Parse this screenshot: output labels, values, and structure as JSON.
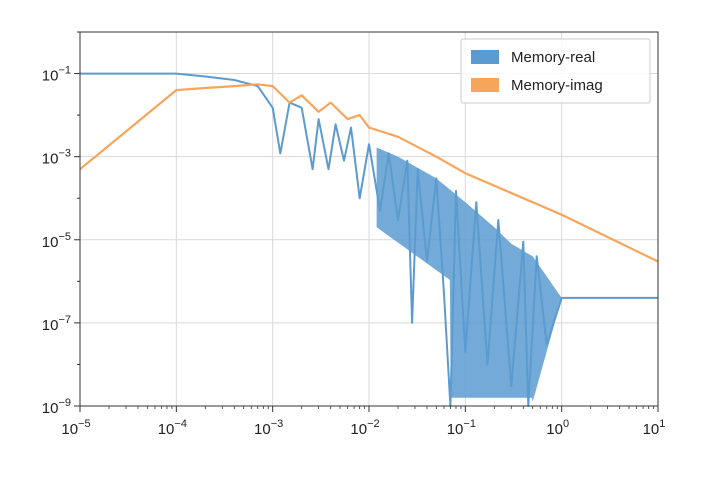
{
  "chart_data": {
    "type": "line",
    "title": "",
    "xlabel": "",
    "ylabel": "",
    "x_scale": "log",
    "y_scale": "log",
    "xlim": [
      1e-05,
      10
    ],
    "ylim": [
      1e-09,
      1
    ],
    "grid": true,
    "legend_position": "top-right",
    "x_ticks": [
      {
        "base": "10",
        "exp": "−5",
        "value": 1e-05
      },
      {
        "base": "10",
        "exp": "−4",
        "value": 0.0001
      },
      {
        "base": "10",
        "exp": "−3",
        "value": 0.001
      },
      {
        "base": "10",
        "exp": "−2",
        "value": 0.01
      },
      {
        "base": "10",
        "exp": "−1",
        "value": 0.1
      },
      {
        "base": "10",
        "exp": "0",
        "value": 1
      },
      {
        "base": "10",
        "exp": "1",
        "value": 10
      }
    ],
    "y_ticks": [
      {
        "base": "10",
        "exp": "−1",
        "value": 0.1
      },
      {
        "base": "10",
        "exp": "−3",
        "value": 0.001
      },
      {
        "base": "10",
        "exp": "−5",
        "value": 1e-05
      },
      {
        "base": "10",
        "exp": "−7",
        "value": 1e-07
      },
      {
        "base": "10",
        "exp": "−9",
        "value": 1e-09
      }
    ],
    "series": [
      {
        "name": "Memory-real",
        "color": "#5b9bd0",
        "points": [
          [
            1e-05,
            0.1
          ],
          [
            0.0001,
            0.1
          ],
          [
            0.0002,
            0.085
          ],
          [
            0.0004,
            0.07
          ],
          [
            0.0007,
            0.05
          ],
          [
            0.001,
            0.015
          ],
          [
            0.0012,
            0.0012
          ],
          [
            0.0015,
            0.02
          ],
          [
            0.002,
            0.015
          ],
          [
            0.0026,
            0.0005
          ],
          [
            0.003,
            0.008
          ],
          [
            0.0038,
            0.0005
          ],
          [
            0.0045,
            0.006
          ],
          [
            0.0055,
            0.0008
          ],
          [
            0.0065,
            0.005
          ],
          [
            0.008,
            0.0001
          ],
          [
            0.01,
            0.002
          ],
          [
            0.013,
            5e-05
          ],
          [
            0.016,
            0.0012
          ],
          [
            0.02,
            3e-05
          ],
          [
            0.025,
            0.0008
          ],
          [
            0.028,
            1e-07
          ],
          [
            0.032,
            0.0005
          ],
          [
            0.04,
            3e-06
          ],
          [
            0.05,
            0.0003
          ],
          [
            0.06,
            5e-07
          ],
          [
            0.07,
            1e-09
          ],
          [
            0.08,
            0.00015
          ],
          [
            0.1,
            2e-08
          ],
          [
            0.13,
            8e-05
          ],
          [
            0.17,
            1e-08
          ],
          [
            0.22,
            3e-05
          ],
          [
            0.3,
            3e-09
          ],
          [
            0.4,
            9e-06
          ],
          [
            0.45,
            1e-09
          ],
          [
            0.55,
            4e-06
          ],
          [
            0.7,
            3e-08
          ],
          [
            1,
            4e-07
          ],
          [
            2,
            4e-07
          ],
          [
            10,
            4e-07
          ]
        ],
        "envelope": [
          [
            0.0015,
            0.02
          ],
          [
            0.003,
            0.008
          ],
          [
            0.006,
            0.005
          ],
          [
            0.01,
            0.002
          ],
          [
            0.02,
            0.001
          ],
          [
            0.05,
            0.0003
          ],
          [
            0.1,
            8e-05
          ],
          [
            0.2,
            2e-05
          ],
          [
            0.3,
            8e-06
          ],
          [
            0.5,
            4e-06
          ],
          [
            1,
            4e-07
          ]
        ]
      },
      {
        "name": "Memory-imag",
        "color": "#f7a55a",
        "points": [
          [
            1e-05,
            0.0005
          ],
          [
            0.0001,
            0.04
          ],
          [
            0.0002,
            0.045
          ],
          [
            0.0004,
            0.05
          ],
          [
            0.0007,
            0.055
          ],
          [
            0.001,
            0.05
          ],
          [
            0.0015,
            0.02
          ],
          [
            0.002,
            0.03
          ],
          [
            0.003,
            0.012
          ],
          [
            0.004,
            0.02
          ],
          [
            0.006,
            0.008
          ],
          [
            0.008,
            0.01
          ],
          [
            0.01,
            0.005
          ],
          [
            0.02,
            0.003
          ],
          [
            0.05,
            0.001
          ],
          [
            0.1,
            0.0004
          ],
          [
            1,
            4e-05
          ],
          [
            10,
            3e-06
          ]
        ]
      }
    ]
  }
}
